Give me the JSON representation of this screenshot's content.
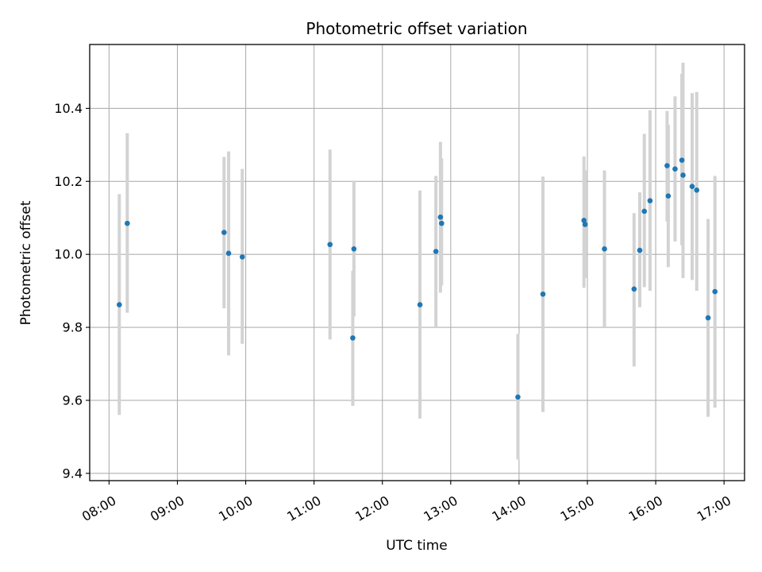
{
  "chart_data": {
    "type": "scatter",
    "title": "Photometric offset variation",
    "xlabel": "UTC time",
    "ylabel": "Photometric offset",
    "grid": true,
    "xlim": [
      "07:43",
      "17:18"
    ],
    "ylim": [
      9.38,
      10.575
    ],
    "x_ticks": [
      "08:00",
      "09:00",
      "10:00",
      "11:00",
      "12:00",
      "13:00",
      "14:00",
      "15:00",
      "16:00",
      "17:00"
    ],
    "y_ticks": [
      9.4,
      9.6,
      9.8,
      10.0,
      10.2,
      10.4
    ],
    "colors": {
      "marker": "#1f77b4",
      "errorbar": "#d3d3d3",
      "grid": "#b0b0b0"
    },
    "points": [
      {
        "x": "08:09",
        "y": 9.862,
        "ylo": 9.56,
        "yhi": 10.165
      },
      {
        "x": "08:16",
        "y": 10.085,
        "ylo": 9.84,
        "yhi": 10.332
      },
      {
        "x": "09:41",
        "y": 10.06,
        "ylo": 9.852,
        "yhi": 10.267
      },
      {
        "x": "09:45",
        "y": 10.003,
        "ylo": 9.723,
        "yhi": 10.282
      },
      {
        "x": "09:57",
        "y": 9.993,
        "ylo": 9.755,
        "yhi": 10.234
      },
      {
        "x": "11:14",
        "y": 10.027,
        "ylo": 9.767,
        "yhi": 10.287
      },
      {
        "x": "11:34",
        "y": 9.771,
        "ylo": 9.585,
        "yhi": 9.955
      },
      {
        "x": "11:35",
        "y": 10.015,
        "ylo": 9.83,
        "yhi": 10.202
      },
      {
        "x": "12:33",
        "y": 9.862,
        "ylo": 9.55,
        "yhi": 10.175
      },
      {
        "x": "12:47",
        "y": 10.008,
        "ylo": 9.8,
        "yhi": 10.215
      },
      {
        "x": "12:51",
        "y": 10.102,
        "ylo": 9.895,
        "yhi": 10.308
      },
      {
        "x": "12:52",
        "y": 10.085,
        "ylo": 9.915,
        "yhi": 10.263
      },
      {
        "x": "13:59",
        "y": 9.609,
        "ylo": 9.438,
        "yhi": 9.782
      },
      {
        "x": "14:21",
        "y": 9.891,
        "ylo": 9.568,
        "yhi": 10.213
      },
      {
        "x": "14:57",
        "y": 10.093,
        "ylo": 9.908,
        "yhi": 10.268
      },
      {
        "x": "14:58",
        "y": 10.082,
        "ylo": 9.935,
        "yhi": 10.23
      },
      {
        "x": "15:15",
        "y": 10.015,
        "ylo": 9.8,
        "yhi": 10.23
      },
      {
        "x": "15:41",
        "y": 9.905,
        "ylo": 9.693,
        "yhi": 10.113
      },
      {
        "x": "15:46",
        "y": 10.011,
        "ylo": 9.855,
        "yhi": 10.17
      },
      {
        "x": "15:50",
        "y": 10.118,
        "ylo": 9.91,
        "yhi": 10.33
      },
      {
        "x": "15:55",
        "y": 10.147,
        "ylo": 9.9,
        "yhi": 10.395
      },
      {
        "x": "16:10",
        "y": 10.243,
        "ylo": 10.09,
        "yhi": 10.393
      },
      {
        "x": "16:11",
        "y": 10.16,
        "ylo": 9.965,
        "yhi": 10.355
      },
      {
        "x": "16:17",
        "y": 10.234,
        "ylo": 10.035,
        "yhi": 10.433
      },
      {
        "x": "16:23",
        "y": 10.258,
        "ylo": 10.025,
        "yhi": 10.495
      },
      {
        "x": "16:24",
        "y": 10.217,
        "ylo": 9.935,
        "yhi": 10.525
      },
      {
        "x": "16:32",
        "y": 10.186,
        "ylo": 9.93,
        "yhi": 10.442
      },
      {
        "x": "16:36",
        "y": 10.176,
        "ylo": 9.9,
        "yhi": 10.445
      },
      {
        "x": "16:46",
        "y": 9.826,
        "ylo": 9.555,
        "yhi": 10.097
      },
      {
        "x": "16:52",
        "y": 9.898,
        "ylo": 9.58,
        "yhi": 10.215
      }
    ]
  }
}
